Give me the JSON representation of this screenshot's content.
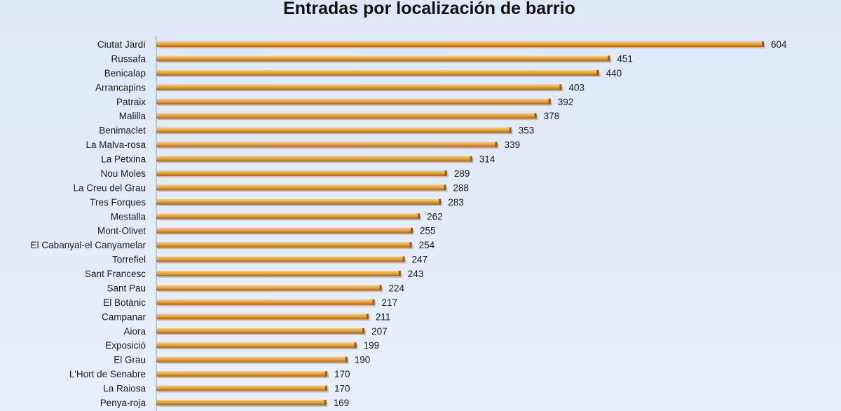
{
  "chart_data": {
    "type": "bar",
    "orientation": "horizontal",
    "title": "Entradas por localización de barrio",
    "xlabel": "",
    "ylabel": "",
    "xlim": [
      0,
      604
    ],
    "grid": false,
    "bar_color": "#e8a33a",
    "categories": [
      "Ciutat Jardí",
      "Russafa",
      "Benicalap",
      "Arrancapins",
      "Patraix",
      "Malilla",
      "Benimaclet",
      "La Malva-rosa",
      "La Petxina",
      "Nou Moles",
      "La Creu del Grau",
      "Tres Forques",
      "Mestalla",
      "Mont-Olivet",
      "El Cabanyal-el Canyamelar",
      "Torrefiel",
      "Sant Francesc",
      "Sant Pau",
      "El Botànic",
      "Campanar",
      "Aiora",
      "Exposició",
      "El Grau",
      "L'Hort de Senabre",
      "La Raiosa",
      "Penya-roja"
    ],
    "values": [
      604,
      451,
      440,
      403,
      392,
      378,
      353,
      339,
      314,
      289,
      288,
      283,
      262,
      255,
      254,
      247,
      243,
      224,
      217,
      211,
      207,
      199,
      190,
      170,
      170,
      169
    ]
  }
}
